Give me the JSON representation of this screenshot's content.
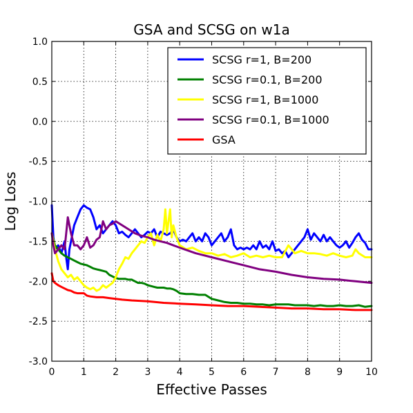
{
  "chart_data": {
    "type": "line",
    "title": "GSA and SCSG on w1a",
    "xlabel": "Effective Passes",
    "ylabel": "Log Loss",
    "xlim": [
      0,
      10
    ],
    "ylim": [
      -3.0,
      1.0
    ],
    "xticks": [
      "0",
      "1",
      "2",
      "3",
      "4",
      "5",
      "6",
      "7",
      "8",
      "9",
      "10"
    ],
    "yticks": [
      "1.0",
      "0.5",
      "0.0",
      "-0.5",
      "-1.0",
      "-1.5",
      "-2.0",
      "-2.5",
      "-3.0"
    ],
    "grid": true,
    "legend_position": "top-right",
    "series": [
      {
        "name": "SCSG r=1, B=200",
        "color": "#0000ff",
        "x": [
          0.0,
          0.05,
          0.1,
          0.2,
          0.3,
          0.4,
          0.45,
          0.5,
          0.55,
          0.6,
          0.7,
          0.8,
          0.9,
          1.0,
          1.1,
          1.2,
          1.3,
          1.4,
          1.5,
          1.6,
          1.7,
          1.8,
          1.9,
          2.0,
          2.1,
          2.2,
          2.3,
          2.4,
          2.5,
          2.6,
          2.7,
          2.8,
          2.9,
          3.0,
          3.1,
          3.2,
          3.3,
          3.4,
          3.5,
          3.6,
          3.7,
          3.8,
          3.9,
          4.0,
          4.1,
          4.2,
          4.3,
          4.4,
          4.5,
          4.6,
          4.7,
          4.8,
          4.9,
          5.0,
          5.1,
          5.2,
          5.3,
          5.4,
          5.5,
          5.6,
          5.7,
          5.8,
          5.9,
          6.0,
          6.1,
          6.2,
          6.3,
          6.4,
          6.5,
          6.6,
          6.7,
          6.8,
          6.9,
          7.0,
          7.1,
          7.2,
          7.3,
          7.4,
          7.5,
          7.6,
          7.7,
          7.8,
          7.9,
          8.0,
          8.1,
          8.2,
          8.3,
          8.4,
          8.5,
          8.6,
          8.7,
          8.8,
          8.9,
          9.0,
          9.1,
          9.2,
          9.3,
          9.4,
          9.5,
          9.6,
          9.7,
          9.8,
          9.9,
          10.0
        ],
        "y": [
          -1.05,
          -1.45,
          -1.6,
          -1.55,
          -1.65,
          -1.5,
          -1.7,
          -1.85,
          -1.6,
          -1.5,
          -1.3,
          -1.2,
          -1.1,
          -1.05,
          -1.08,
          -1.1,
          -1.2,
          -1.35,
          -1.3,
          -1.4,
          -1.35,
          -1.3,
          -1.25,
          -1.3,
          -1.4,
          -1.38,
          -1.42,
          -1.45,
          -1.4,
          -1.35,
          -1.4,
          -1.45,
          -1.42,
          -1.38,
          -1.4,
          -1.35,
          -1.45,
          -1.38,
          -1.4,
          -1.42,
          -1.4,
          -1.35,
          -1.45,
          -1.5,
          -1.48,
          -1.5,
          -1.45,
          -1.4,
          -1.5,
          -1.45,
          -1.5,
          -1.4,
          -1.45,
          -1.55,
          -1.5,
          -1.45,
          -1.4,
          -1.5,
          -1.45,
          -1.35,
          -1.55,
          -1.6,
          -1.58,
          -1.6,
          -1.58,
          -1.6,
          -1.55,
          -1.6,
          -1.5,
          -1.58,
          -1.55,
          -1.6,
          -1.5,
          -1.62,
          -1.6,
          -1.65,
          -1.62,
          -1.7,
          -1.65,
          -1.6,
          -1.55,
          -1.5,
          -1.45,
          -1.35,
          -1.48,
          -1.4,
          -1.45,
          -1.5,
          -1.42,
          -1.5,
          -1.45,
          -1.5,
          -1.55,
          -1.58,
          -1.55,
          -1.5,
          -1.58,
          -1.52,
          -1.45,
          -1.4,
          -1.48,
          -1.52,
          -1.6,
          -1.6
        ]
      },
      {
        "name": "SCSG r=0.1, B=200",
        "color": "#008000",
        "x": [
          0.0,
          0.1,
          0.2,
          0.3,
          0.4,
          0.5,
          0.6,
          0.7,
          0.8,
          0.9,
          1.0,
          1.1,
          1.2,
          1.3,
          1.4,
          1.5,
          1.6,
          1.7,
          1.8,
          1.9,
          2.0,
          2.1,
          2.2,
          2.3,
          2.4,
          2.5,
          2.6,
          2.7,
          2.8,
          2.9,
          3.0,
          3.1,
          3.2,
          3.3,
          3.4,
          3.5,
          3.6,
          3.7,
          3.8,
          3.9,
          4.0,
          4.2,
          4.4,
          4.6,
          4.8,
          5.0,
          5.2,
          5.4,
          5.6,
          5.8,
          6.0,
          6.2,
          6.4,
          6.6,
          6.8,
          7.0,
          7.2,
          7.4,
          7.6,
          7.8,
          8.0,
          8.2,
          8.4,
          8.6,
          8.8,
          9.0,
          9.2,
          9.4,
          9.6,
          9.8,
          10.0
        ],
        "y": [
          -1.4,
          -1.55,
          -1.6,
          -1.65,
          -1.68,
          -1.7,
          -1.72,
          -1.74,
          -1.76,
          -1.78,
          -1.79,
          -1.8,
          -1.82,
          -1.84,
          -1.85,
          -1.86,
          -1.87,
          -1.88,
          -1.92,
          -1.94,
          -1.96,
          -1.97,
          -1.97,
          -1.97,
          -1.98,
          -1.98,
          -2.0,
          -2.02,
          -2.02,
          -2.03,
          -2.05,
          -2.06,
          -2.07,
          -2.08,
          -2.08,
          -2.08,
          -2.09,
          -2.09,
          -2.1,
          -2.12,
          -2.15,
          -2.16,
          -2.16,
          -2.17,
          -2.17,
          -2.22,
          -2.24,
          -2.26,
          -2.27,
          -2.27,
          -2.28,
          -2.28,
          -2.29,
          -2.29,
          -2.3,
          -2.29,
          -2.29,
          -2.29,
          -2.3,
          -2.3,
          -2.3,
          -2.31,
          -2.3,
          -2.31,
          -2.31,
          -2.3,
          -2.31,
          -2.31,
          -2.3,
          -2.32,
          -2.31
        ]
      },
      {
        "name": "SCSG r=1, B=1000",
        "color": "#ffff00",
        "x": [
          0.0,
          0.1,
          0.2,
          0.3,
          0.4,
          0.5,
          0.6,
          0.7,
          0.8,
          0.9,
          1.0,
          1.1,
          1.2,
          1.3,
          1.4,
          1.5,
          1.6,
          1.7,
          1.8,
          1.9,
          2.0,
          2.1,
          2.2,
          2.3,
          2.4,
          2.5,
          2.6,
          2.7,
          2.8,
          2.9,
          3.0,
          3.1,
          3.2,
          3.3,
          3.4,
          3.5,
          3.55,
          3.6,
          3.7,
          3.75,
          3.8,
          3.9,
          4.0,
          4.2,
          4.4,
          4.6,
          4.8,
          5.0,
          5.2,
          5.4,
          5.6,
          5.8,
          6.0,
          6.2,
          6.4,
          6.6,
          6.8,
          7.0,
          7.2,
          7.4,
          7.5,
          7.6,
          7.8,
          8.0,
          8.2,
          8.4,
          8.6,
          8.8,
          9.0,
          9.2,
          9.4,
          9.5,
          9.6,
          9.8,
          10.0
        ],
        "y": [
          -1.4,
          -1.6,
          -1.75,
          -1.85,
          -1.9,
          -1.95,
          -1.92,
          -1.98,
          -1.95,
          -2.0,
          -2.05,
          -2.08,
          -2.1,
          -2.08,
          -2.12,
          -2.1,
          -2.05,
          -2.08,
          -2.05,
          -2.02,
          -1.95,
          -1.85,
          -1.78,
          -1.7,
          -1.72,
          -1.65,
          -1.6,
          -1.55,
          -1.5,
          -1.52,
          -1.45,
          -1.4,
          -1.55,
          -1.42,
          -1.5,
          -1.35,
          -1.1,
          -1.4,
          -1.1,
          -1.45,
          -1.3,
          -1.45,
          -1.55,
          -1.6,
          -1.58,
          -1.62,
          -1.65,
          -1.65,
          -1.68,
          -1.66,
          -1.7,
          -1.68,
          -1.65,
          -1.7,
          -1.68,
          -1.7,
          -1.68,
          -1.7,
          -1.7,
          -1.55,
          -1.6,
          -1.65,
          -1.62,
          -1.65,
          -1.65,
          -1.66,
          -1.68,
          -1.65,
          -1.68,
          -1.7,
          -1.68,
          -1.6,
          -1.65,
          -1.7,
          -1.7
        ]
      },
      {
        "name": "SCSG r=0.1, B=1000",
        "color": "#800080",
        "x": [
          0.0,
          0.05,
          0.1,
          0.2,
          0.3,
          0.4,
          0.5,
          0.6,
          0.7,
          0.8,
          0.9,
          1.0,
          1.1,
          1.2,
          1.3,
          1.4,
          1.5,
          1.6,
          1.7,
          1.8,
          1.9,
          2.0,
          2.2,
          2.4,
          2.6,
          2.8,
          3.0,
          3.2,
          3.4,
          3.6,
          3.8,
          4.0,
          4.5,
          5.0,
          5.5,
          6.0,
          6.5,
          7.0,
          7.5,
          8.0,
          8.5,
          9.0,
          9.5,
          10.0
        ],
        "y": [
          -1.4,
          -1.55,
          -1.65,
          -1.6,
          -1.55,
          -1.6,
          -1.2,
          -1.4,
          -1.55,
          -1.55,
          -1.6,
          -1.55,
          -1.45,
          -1.58,
          -1.55,
          -1.48,
          -1.45,
          -1.25,
          -1.35,
          -1.3,
          -1.28,
          -1.25,
          -1.3,
          -1.35,
          -1.4,
          -1.43,
          -1.45,
          -1.48,
          -1.5,
          -1.52,
          -1.55,
          -1.58,
          -1.65,
          -1.7,
          -1.75,
          -1.8,
          -1.85,
          -1.88,
          -1.92,
          -1.95,
          -1.97,
          -1.98,
          -2.0,
          -2.02
        ]
      },
      {
        "name": "GSA",
        "color": "#ff0000",
        "x": [
          0.0,
          0.05,
          0.1,
          0.2,
          0.3,
          0.4,
          0.5,
          0.6,
          0.7,
          0.8,
          0.9,
          1.0,
          1.1,
          1.2,
          1.4,
          1.6,
          1.8,
          2.0,
          2.2,
          2.5,
          3.0,
          3.5,
          4.0,
          4.5,
          5.0,
          5.5,
          6.0,
          6.5,
          7.0,
          7.5,
          8.0,
          8.5,
          9.0,
          9.5,
          10.0
        ],
        "y": [
          -1.9,
          -2.0,
          -2.02,
          -2.05,
          -2.07,
          -2.09,
          -2.11,
          -2.12,
          -2.14,
          -2.15,
          -2.15,
          -2.15,
          -2.18,
          -2.19,
          -2.2,
          -2.2,
          -2.21,
          -2.22,
          -2.23,
          -2.24,
          -2.25,
          -2.27,
          -2.28,
          -2.29,
          -2.3,
          -2.31,
          -2.31,
          -2.32,
          -2.33,
          -2.34,
          -2.34,
          -2.35,
          -2.35,
          -2.36,
          -2.36
        ]
      }
    ]
  }
}
